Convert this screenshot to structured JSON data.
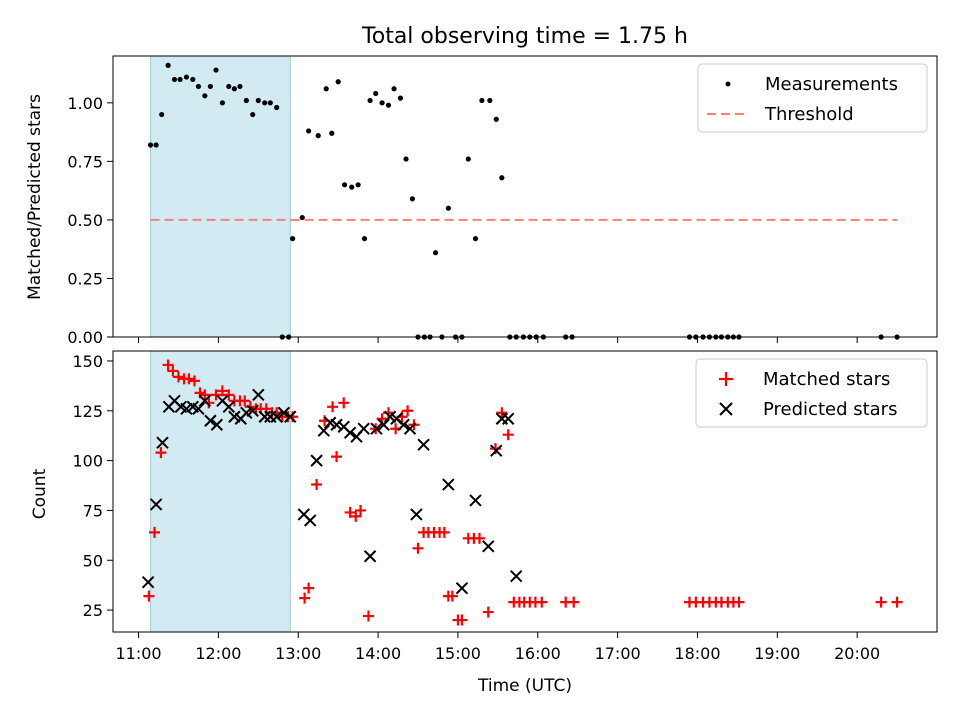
{
  "chart_data": [
    {
      "type": "scatter",
      "title": "Total observing time = 1.75 h",
      "ylabel": "Matched/Predicted stars",
      "xlabel": "",
      "xlim_hours": [
        10.68,
        21.0
      ],
      "ylim": [
        0,
        1.2
      ],
      "yticks": [
        0.0,
        0.25,
        0.5,
        0.75,
        1.0
      ],
      "ytick_labels": [
        "0.00",
        "0.25",
        "0.50",
        "0.75",
        "1.00"
      ],
      "highlight_span_hours": [
        11.15,
        12.9
      ],
      "legend": {
        "placement": "top-right",
        "entries": [
          "Measurements",
          "Threshold"
        ]
      },
      "threshold": {
        "name": "Threshold",
        "value": 0.5,
        "x_range_hours": [
          11.15,
          20.5
        ],
        "color": "#ff7f7f"
      },
      "series": [
        {
          "name": "Measurements",
          "marker": "dot",
          "color": "#000000",
          "x_hours": [
            11.15,
            11.22,
            11.29,
            11.37,
            11.45,
            11.52,
            11.6,
            11.68,
            11.75,
            11.83,
            11.9,
            11.97,
            12.05,
            12.13,
            12.2,
            12.27,
            12.35,
            12.43,
            12.5,
            12.58,
            12.65,
            12.73,
            12.8,
            12.88,
            12.93,
            13.05,
            13.13,
            13.25,
            13.35,
            13.42,
            13.5,
            13.58,
            13.67,
            13.75,
            13.83,
            13.9,
            13.97,
            14.05,
            14.13,
            14.2,
            14.28,
            14.35,
            14.43,
            14.5,
            14.58,
            14.65,
            14.72,
            14.8,
            14.88,
            14.97,
            15.05,
            15.13,
            15.22,
            15.3,
            15.4,
            15.48,
            15.55,
            15.65,
            15.73,
            15.82,
            15.9,
            15.98,
            16.07,
            16.35,
            16.43,
            17.9,
            17.98,
            18.07,
            18.15,
            18.23,
            18.3,
            18.38,
            18.45,
            18.52,
            20.3,
            20.5
          ],
          "y": [
            0.82,
            0.82,
            0.95,
            1.16,
            1.1,
            1.1,
            1.11,
            1.1,
            1.07,
            1.03,
            1.07,
            1.14,
            1.0,
            1.07,
            1.06,
            1.07,
            1.01,
            0.95,
            1.01,
            1.0,
            1.0,
            0.98,
            0,
            0,
            0.42,
            0.51,
            0.88,
            0.86,
            1.06,
            0.87,
            1.09,
            0.65,
            0.64,
            0.65,
            0.42,
            1.01,
            1.04,
            1.0,
            0.99,
            1.06,
            1.02,
            0.76,
            0.59,
            0,
            0,
            0,
            0.36,
            0,
            0.55,
            0,
            0,
            0.76,
            0.42,
            1.01,
            1.01,
            0.93,
            0.68,
            0,
            0,
            0,
            0,
            0,
            0,
            0,
            0,
            0,
            0,
            0,
            0,
            0,
            0,
            0,
            0,
            0,
            0,
            0
          ]
        }
      ]
    },
    {
      "type": "scatter",
      "title": "",
      "ylabel": "Count",
      "xlabel": "Time (UTC)",
      "xlim_hours": [
        10.68,
        21.0
      ],
      "ylim": [
        14,
        155
      ],
      "yticks": [
        25,
        50,
        75,
        100,
        125,
        150
      ],
      "ytick_labels": [
        "25",
        "50",
        "75",
        "100",
        "125",
        "150"
      ],
      "xticks_hours": [
        11,
        12,
        13,
        14,
        15,
        16,
        17,
        18,
        19,
        20
      ],
      "xtick_labels": [
        "11:00",
        "12:00",
        "13:00",
        "14:00",
        "15:00",
        "16:00",
        "17:00",
        "18:00",
        "19:00",
        "20:00"
      ],
      "highlight_span_hours": [
        11.15,
        12.9
      ],
      "legend": {
        "placement": "top-right",
        "entries": [
          "Matched stars",
          "Predicted stars"
        ]
      },
      "series": [
        {
          "name": "Matched stars",
          "marker": "plus",
          "color": "#ff0000",
          "x_hours": [
            11.13,
            11.2,
            11.28,
            11.37,
            11.43,
            11.5,
            11.57,
            11.63,
            11.7,
            11.77,
            11.83,
            11.88,
            11.97,
            12.05,
            12.13,
            12.2,
            12.27,
            12.33,
            12.4,
            12.47,
            12.53,
            12.6,
            12.67,
            12.73,
            12.8,
            12.87,
            12.93,
            13.08,
            13.13,
            13.23,
            13.33,
            13.43,
            13.48,
            13.57,
            13.65,
            13.72,
            13.78,
            13.88,
            13.97,
            14.05,
            14.13,
            14.22,
            14.3,
            14.37,
            14.45,
            14.5,
            14.57,
            14.63,
            14.7,
            14.77,
            14.83,
            14.88,
            14.93,
            15.0,
            15.05,
            15.13,
            15.2,
            15.27,
            15.38,
            15.47,
            15.55,
            15.63,
            15.7,
            15.77,
            15.83,
            15.9,
            15.97,
            16.05,
            16.35,
            16.45,
            17.9,
            17.98,
            18.07,
            18.15,
            18.23,
            18.3,
            18.38,
            18.45,
            18.52,
            20.3,
            20.5
          ],
          "y": [
            32,
            64,
            104,
            148,
            145,
            142,
            141,
            141,
            140,
            134,
            133,
            129,
            133,
            135,
            133,
            130,
            130,
            130,
            127,
            126,
            126,
            126,
            124,
            124,
            122,
            122,
            122,
            31,
            36,
            88,
            120,
            127,
            102,
            129,
            74,
            72,
            75,
            22,
            116,
            121,
            124,
            116,
            122,
            125,
            118,
            56,
            64,
            64,
            64,
            64,
            64,
            32,
            32,
            20,
            20,
            61,
            61,
            61,
            24,
            106,
            124,
            113,
            29,
            29,
            29,
            29,
            29,
            29,
            29,
            29,
            29,
            29,
            29,
            29,
            29,
            29,
            29,
            29,
            29,
            29,
            29
          ]
        },
        {
          "name": "Predicted stars",
          "marker": "x",
          "color": "#000000",
          "x_hours": [
            11.12,
            11.22,
            11.3,
            11.38,
            11.45,
            11.53,
            11.6,
            11.68,
            11.75,
            11.83,
            11.9,
            11.98,
            12.05,
            12.13,
            12.2,
            12.28,
            12.35,
            12.43,
            12.5,
            12.58,
            12.65,
            12.73,
            12.82,
            12.9,
            13.07,
            13.15,
            13.23,
            13.32,
            13.4,
            13.48,
            13.57,
            13.65,
            13.73,
            13.82,
            13.9,
            13.98,
            14.07,
            14.15,
            14.23,
            14.32,
            14.4,
            14.48,
            14.57,
            14.88,
            15.05,
            15.22,
            15.38,
            15.48,
            15.55,
            15.63,
            15.73
          ],
          "y": [
            39,
            78,
            109,
            127,
            130,
            127,
            126,
            127,
            126,
            130,
            120,
            118,
            130,
            127,
            122,
            121,
            124,
            125,
            133,
            122,
            122,
            122,
            124,
            122,
            73,
            70,
            100,
            115,
            119,
            118,
            117,
            114,
            112,
            116,
            52,
            116,
            118,
            122,
            121,
            118,
            116,
            73,
            108,
            88,
            36,
            80,
            57,
            105,
            121,
            121,
            42
          ]
        }
      ]
    }
  ]
}
